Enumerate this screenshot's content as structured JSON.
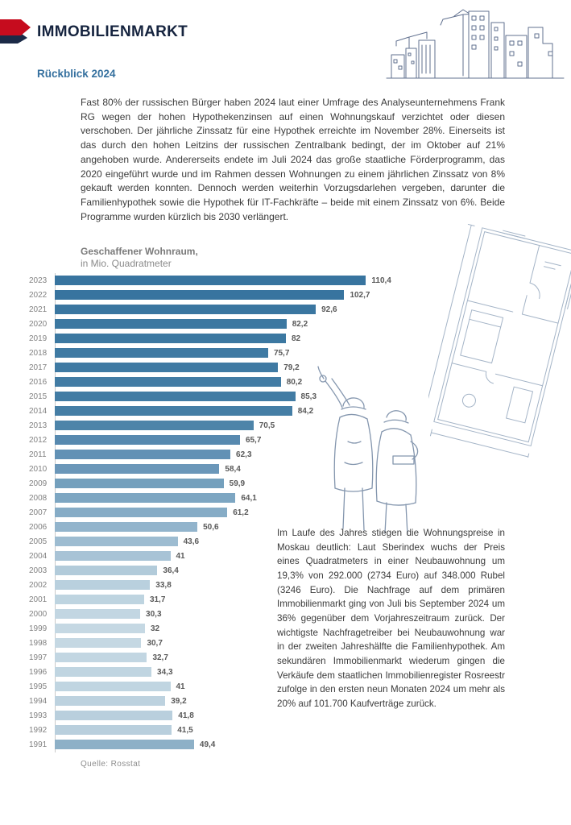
{
  "header": {
    "title": "IMMOBILIENMARKT"
  },
  "section": {
    "subtitle": "Rückblick 2024"
  },
  "intro": {
    "text": "Fast 80% der russischen Bürger haben 2024 laut einer Umfrage des Analyseunternehmens Frank RG wegen der hohen Hypothekenzinsen auf einen Wohnungskauf verzichtet oder diesen verschoben. Der jährliche Zinssatz für eine Hypothek erreichte im November 28%. Einerseits ist das durch den hohen Leitzins der russischen Zentralbank bedingt, der im Oktober auf 21% angehoben wurde. Andererseits endete im Juli 2024 das große staatliche Förderprogramm, das 2020 eingeführt wurde und im Rahmen dessen Wohnungen zu einem jährlichen Zinssatz von 8% gekauft werden konnten. Dennoch werden weiterhin Vorzugsdarlehen vergeben, darunter die Familienhypothek sowie die Hypothek für IT-Fachkräfte – beide mit einem Zinssatz von 6%. Beide Programme wurden kürzlich bis 2030 verlängert."
  },
  "side": {
    "text": "Im Laufe des Jahres stiegen die Wohnungspreise in Moskau deutlich: Laut Sberindex wuchs der Preis eines Quadratmeters in einer Neubauwohnung um 19,3% von 292.000 (2734 Euro) auf 348.000 Rubel (3246 Euro). Die Nachfrage auf dem primären Immobilienmarkt ging von Juli bis September 2024 um 36% gegenüber dem Vorjahreszeitraum zurück. Der wichtigste Nachfragetreiber bei Neubauwohnung war in der zweiten Jahreshälfte die Familienhypothek. Am sekundären Immobilienmarkt wiederum gingen die Verkäufe dem staatlichen Immobilienregister Rosreestr zufolge in den ersten neun Monaten 2024 um mehr als 20% auf 101.700 Kaufverträge zurück."
  },
  "chart_data": {
    "type": "bar",
    "orientation": "horizontal",
    "title": "Geschaffener Wohnraum,",
    "subtitle": "in Mio. Quadratmeter",
    "source": "Quelle: Rosstat",
    "xlim": [
      0,
      115
    ],
    "grid": false,
    "categories": [
      "2023",
      "2022",
      "2021",
      "2020",
      "2019",
      "2018",
      "2017",
      "2016",
      "2015",
      "2014",
      "2013",
      "2012",
      "2011",
      "2010",
      "2009",
      "2008",
      "2007",
      "2006",
      "2005",
      "2004",
      "2003",
      "2002",
      "2001",
      "2000",
      "1999",
      "1998",
      "1997",
      "1996",
      "1995",
      "1994",
      "1993",
      "1992",
      "1991"
    ],
    "values": [
      110.4,
      102.7,
      92.6,
      82.2,
      82,
      75.7,
      79.2,
      80.2,
      85.3,
      84.2,
      70.5,
      65.7,
      62.3,
      58.4,
      59.9,
      64.1,
      61.2,
      50.6,
      43.6,
      41,
      36.4,
      33.8,
      31.7,
      30.3,
      32,
      30.7,
      32.7,
      34.3,
      41,
      39.2,
      41.8,
      41.5,
      49.4
    ],
    "value_labels": [
      "110,4",
      "102,7",
      "92,6",
      "82,2",
      "82",
      "75,7",
      "79,2",
      "80,2",
      "85,3",
      "84,2",
      "70,5",
      "65,7",
      "62,3",
      "58,4",
      "59,9",
      "64,1",
      "61,2",
      "50,6",
      "43,6",
      "41",
      "36,4",
      "33,8",
      "31,7",
      "30,3",
      "32",
      "30,7",
      "32,7",
      "34,3",
      "41",
      "39,2",
      "41,8",
      "41,5",
      "49,4"
    ],
    "bar_colors": [
      "#38749f",
      "#38749f",
      "#3a76a0",
      "#3c78a1",
      "#3c78a1",
      "#3f7aa3",
      "#3f7aa3",
      "#427ca4",
      "#427ca4",
      "#457ea5",
      "#4d84a9",
      "#5789af",
      "#6291b5",
      "#6b97b9",
      "#74a0bd",
      "#7da6c2",
      "#86acc6",
      "#92b4cc",
      "#9dbcd1",
      "#a8c3d6",
      "#b2cbda",
      "#b9d0de",
      "#bed4e0",
      "#c2d6e2",
      "#c5d8e3",
      "#c5d8e3",
      "#c2d6e2",
      "#c0d5e1",
      "#c0d5e1",
      "#bdd2df",
      "#b9cfdd",
      "#b9cfdd",
      "#8db0c7"
    ]
  },
  "illustrations": {
    "logo": "red-arrow-logo",
    "skyline": "construction-skyline-line-art",
    "workers": "two-construction-workers-line-art",
    "floorplan": "apartment-floor-plan-line-art"
  },
  "colors": {
    "accent_red": "#c60c1e",
    "navy": "#16243f",
    "heading_blue": "#36719f",
    "body_text": "#3b3b3b",
    "muted_gray": "#8a8a8a",
    "value_label_gray": "#595959",
    "axis_gray": "#c9c9c9"
  }
}
